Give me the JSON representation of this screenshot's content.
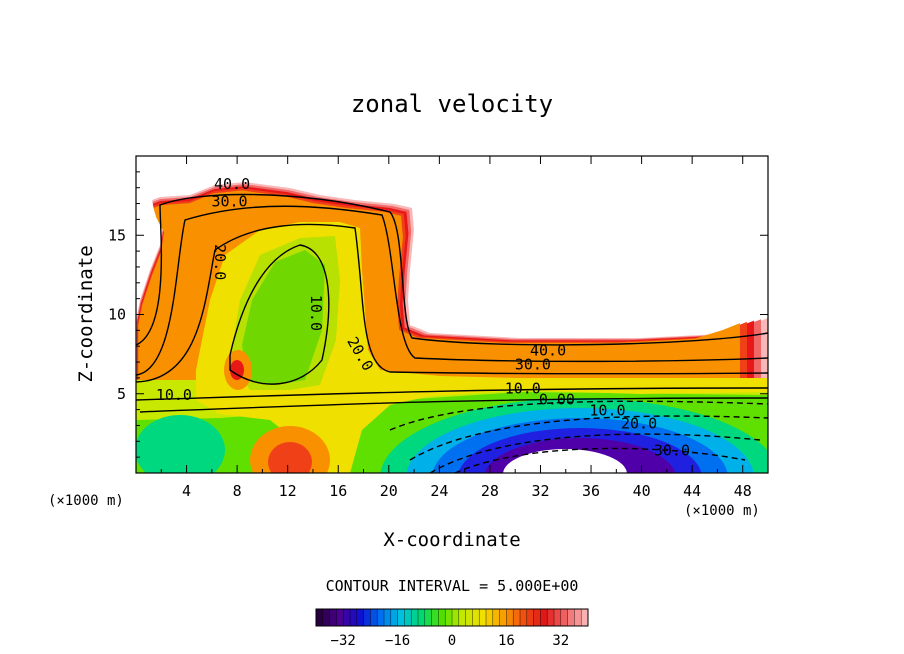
{
  "chart_data": {
    "type": "contour",
    "title": "zonal velocity",
    "xlabel": "X-coordinate",
    "ylabel": "Z-coordinate",
    "x_units": "(×1000 m)",
    "z_units": "(×1000 m)",
    "xlim": [
      0,
      50
    ],
    "ylim": [
      0,
      20
    ],
    "x_ticks": [
      4,
      8,
      12,
      16,
      20,
      24,
      28,
      32,
      36,
      40,
      44,
      48
    ],
    "y_ticks": [
      5,
      10,
      15
    ],
    "contour_interval_text": "CONTOUR INTERVAL = 5.000E+00",
    "contour_interval": 5.0,
    "value_range": [
      -40,
      40
    ],
    "contour_labels": [
      {
        "text": "40.0",
        "x": 7.6,
        "z": 18.2
      },
      {
        "text": "30.0",
        "x": 7.4,
        "z": 17.1
      },
      {
        "text": "20.0",
        "x": 6.6,
        "z": 13.3
      },
      {
        "text": "10.0",
        "x": 14.2,
        "z": 10.1
      },
      {
        "text": "20.0",
        "x": 17.7,
        "z": 7.5
      },
      {
        "text": "40.0",
        "x": 32.6,
        "z": 7.7
      },
      {
        "text": "30.0",
        "x": 31.4,
        "z": 6.8
      },
      {
        "text": "10.0",
        "x": 30.6,
        "z": 5.3
      },
      {
        "text": "0.00",
        "x": 33.3,
        "z": 4.6
      },
      {
        "text": "10.0",
        "x": 37.3,
        "z": 3.9
      },
      {
        "text": "20.0",
        "x": 39.8,
        "z": 3.1
      },
      {
        "text": "30.0",
        "x": 42.4,
        "z": 1.4
      },
      {
        "text": "10.0",
        "x": 3.0,
        "z": 4.9
      }
    ],
    "colorbar": {
      "ticks": [
        -32,
        -16,
        0,
        16,
        32
      ],
      "range": [
        -40,
        40
      ],
      "colors": [
        "#280040",
        "#4a0090",
        "#1010d0",
        "#0070f0",
        "#00c0e0",
        "#00d870",
        "#50e000",
        "#c0e800",
        "#f0e000",
        "#f8a000",
        "#f05010",
        "#e01818",
        "#f06060",
        "#f8b0b0"
      ]
    },
    "field_colors": {
      "jet_core": "#f0e000",
      "jet_inner": "#b8e000",
      "jet_center": "#70d800",
      "warm_ring1": "#f8c800",
      "warm_ring2": "#f89000",
      "warm_ring3": "#f04018",
      "warm_ring4": "#e81818",
      "warm_ring5": "#f06868",
      "warm_ring6": "#f8b8b8",
      "cool_ring1": "#c8e800",
      "cool_ring2": "#60e000",
      "cool_ring3": "#00d880",
      "cool_ring4": "#00b0e8",
      "cool_ring5": "#0070f0",
      "cool_ring6": "#2020e0",
      "cool_ring7": "#5000a8",
      "cool_core": "#ffffff"
    }
  }
}
